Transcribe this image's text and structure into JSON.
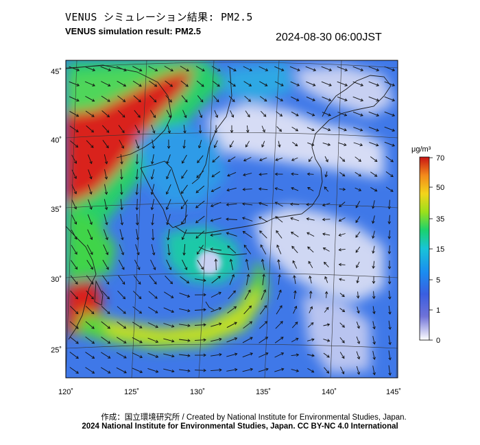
{
  "title_jp": "VENUS シミュレーション結果: PM2.5",
  "title_en": "VENUS simulation result: PM2.5",
  "timestamp": "2024-08-30 06:00JST",
  "map": {
    "lon_ticks": [
      "120˚",
      "125˚",
      "130˚",
      "135˚",
      "140˚",
      "145˚"
    ],
    "lat_ticks": [
      "45˚",
      "40˚",
      "35˚",
      "30˚",
      "25˚"
    ]
  },
  "colorbar": {
    "unit": "μg/m³",
    "ticks": [
      "70",
      "50",
      "35",
      "15",
      "5",
      "1",
      "0"
    ],
    "colors": [
      "#ffffff",
      "#4a54d6",
      "#1b76f0",
      "#17b2ea",
      "#1bd26e",
      "#9be01b",
      "#f3d41b",
      "#f38a1b",
      "#e33a12",
      "#c81414"
    ]
  },
  "credit_line1": "作成：国立環境研究所 / Created by National Institute for Environmental Studies, Japan.",
  "credit_line2": "2024 National Institute for Environmental Studies, Japan. CC BY-NC 4.0 International"
}
